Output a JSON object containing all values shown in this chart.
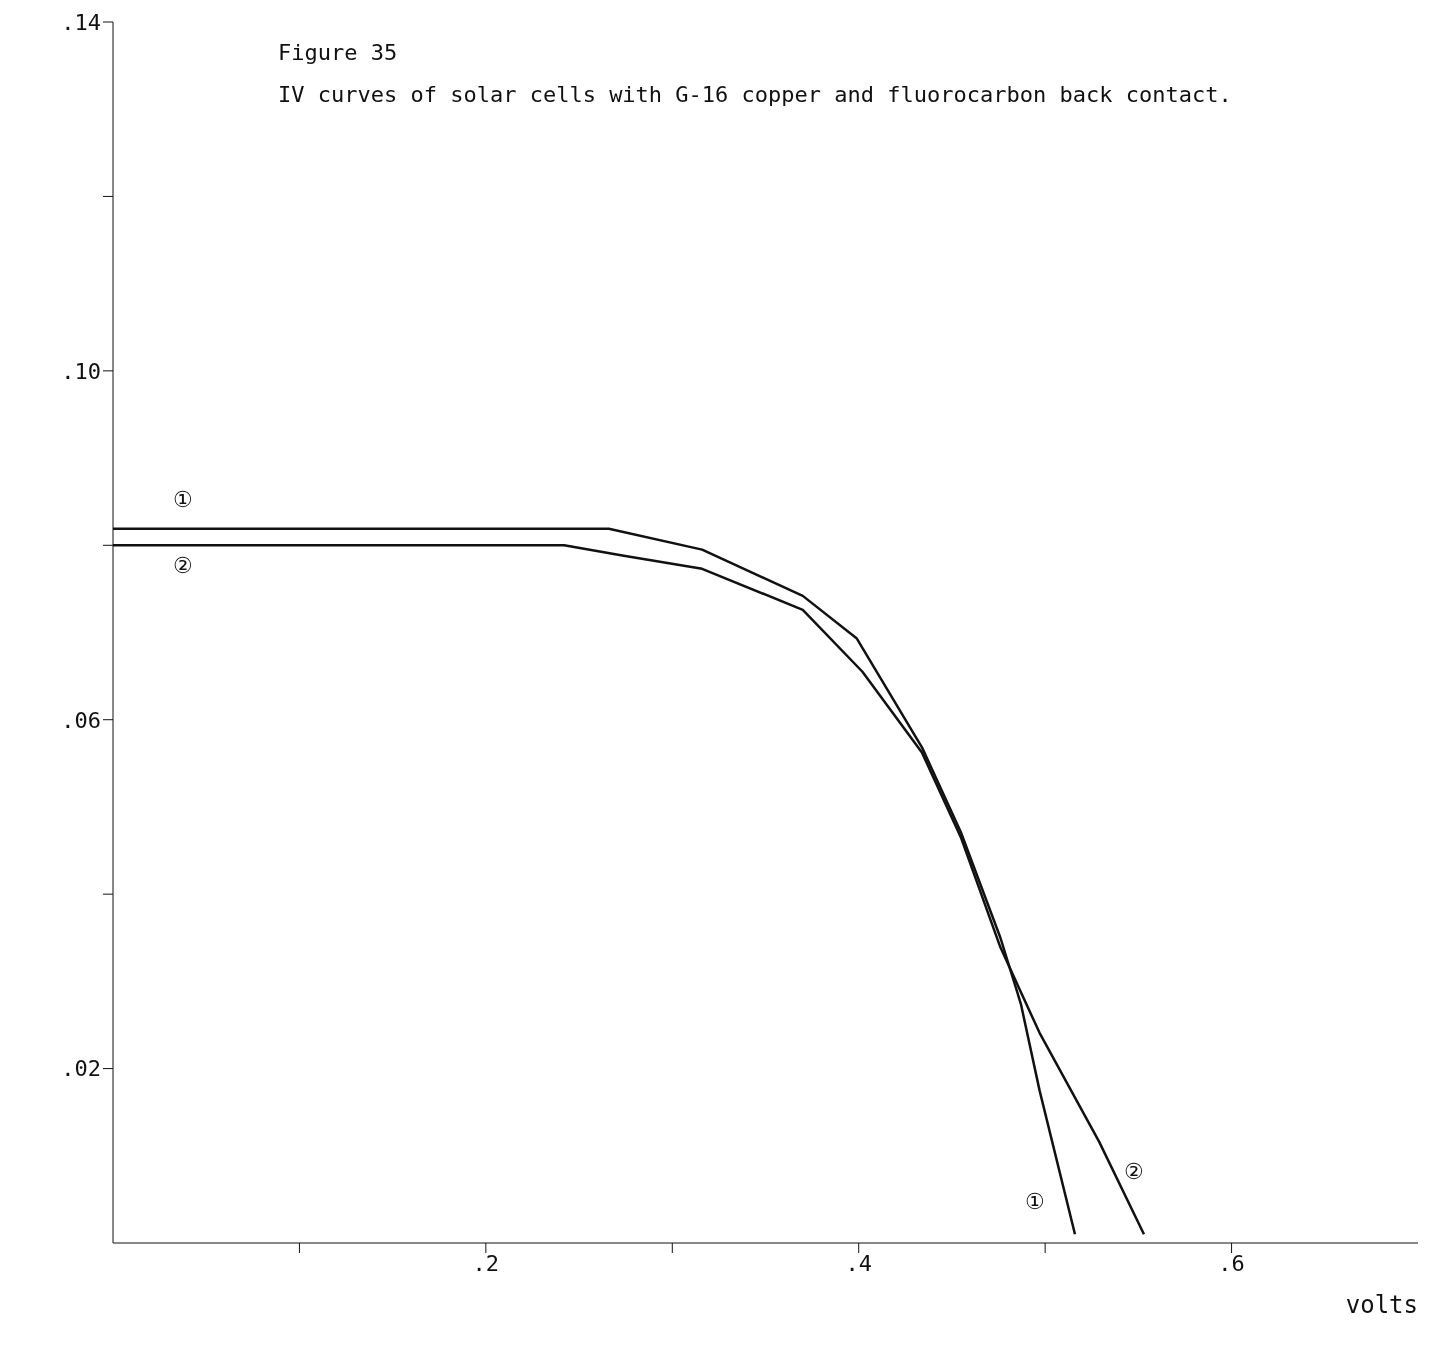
{
  "chart_data": {
    "type": "line",
    "title": "Figure 35",
    "subtitle": "IV curves of solar cells with G-16 copper and fluorocarbon back contact.",
    "xlabel": "volts",
    "xlim": [
      0,
      0.7
    ],
    "xticks": [
      {
        "value": 0.1,
        "label": null
      },
      {
        "value": 0.2,
        "label": ".2"
      },
      {
        "value": 0.3,
        "label": null
      },
      {
        "value": 0.4,
        "label": ".4"
      },
      {
        "value": 0.5,
        "label": null
      },
      {
        "value": 0.6,
        "label": ".6"
      }
    ],
    "ylim": [
      0,
      0.14
    ],
    "yticks": [
      {
        "value": 0.02,
        "label": ".02"
      },
      {
        "value": 0.04,
        "label": null
      },
      {
        "value": 0.06,
        "label": ".06"
      },
      {
        "value": 0.08,
        "label": null
      },
      {
        "value": 0.1,
        "label": ".10"
      },
      {
        "value": 0.12,
        "label": null
      },
      {
        "value": 0.14,
        "label": ".14"
      }
    ],
    "marker": "none",
    "line_style": "solid",
    "series": [
      {
        "name": "①",
        "color": "#111111",
        "x": [
          0,
          0.266,
          0.316,
          0.37,
          0.399,
          0.434,
          0.455,
          0.476,
          0.487,
          0.497,
          0.516
        ],
        "values": [
          0.0819,
          0.0819,
          0.0795,
          0.0742,
          0.0693,
          0.0568,
          0.047,
          0.035,
          0.0274,
          0.0175,
          0.001
        ]
      },
      {
        "name": "②",
        "color": "#111111",
        "x": [
          0,
          0.242,
          0.274,
          0.316,
          0.37,
          0.402,
          0.434,
          0.455,
          0.476,
          0.497,
          0.529,
          0.553
        ],
        "values": [
          0.08,
          0.08,
          0.0788,
          0.0773,
          0.0726,
          0.0655,
          0.0562,
          0.0464,
          0.0339,
          0.0241,
          0.0116,
          0.001
        ]
      }
    ]
  }
}
